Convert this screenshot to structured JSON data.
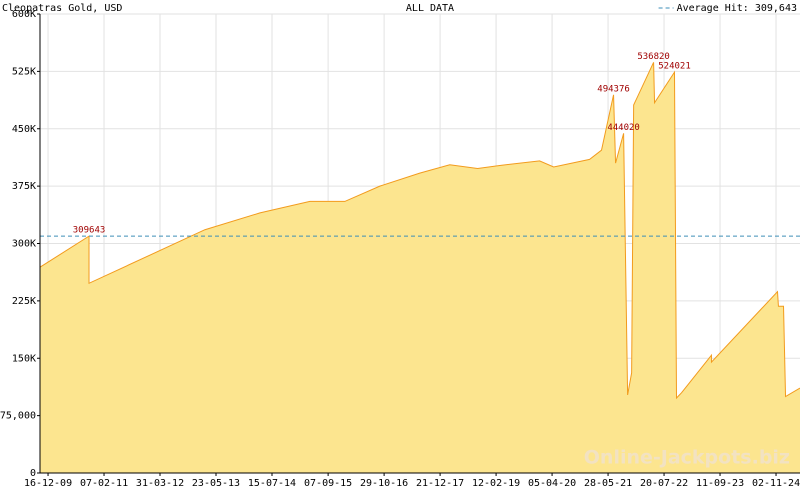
{
  "chart_data": {
    "type": "area",
    "title": "Cleopatras Gold, USD",
    "subtitle": "ALL DATA",
    "watermark": "Online-Jackpots.biz",
    "color": "#fce58f",
    "line_color": "#f29b1d",
    "average": {
      "value": 309643,
      "label": "Average Hit: 309,643",
      "color": "#3d8fb8"
    },
    "grid": true,
    "xlim": [
      "2009-10-17",
      "2025-04-30"
    ],
    "xticks": [
      {
        "value": "2009-12-16",
        "label": "16-12-09"
      },
      {
        "value": "2011-02-07",
        "label": "07-02-11"
      },
      {
        "value": "2012-03-31",
        "label": "31-03-12"
      },
      {
        "value": "2013-05-23",
        "label": "23-05-13"
      },
      {
        "value": "2014-07-15",
        "label": "15-07-14"
      },
      {
        "value": "2015-09-07",
        "label": "07-09-15"
      },
      {
        "value": "2016-10-29",
        "label": "29-10-16"
      },
      {
        "value": "2017-12-21",
        "label": "21-12-17"
      },
      {
        "value": "2019-02-12",
        "label": "12-02-19"
      },
      {
        "value": "2020-04-05",
        "label": "05-04-20"
      },
      {
        "value": "2021-05-28",
        "label": "28-05-21"
      },
      {
        "value": "2022-07-20",
        "label": "20-07-22"
      },
      {
        "value": "2023-09-11",
        "label": "11-09-23"
      },
      {
        "value": "2024-11-02",
        "label": "02-11-24"
      }
    ],
    "ylim": [
      0,
      600000
    ],
    "yticks": [
      0,
      {
        "value": 75000,
        "label": "75,000"
      },
      {
        "value": 150000,
        "label": "150K"
      },
      {
        "value": 225000,
        "label": "225K"
      },
      {
        "value": 300000,
        "label": "300K"
      },
      {
        "value": 375000,
        "label": "375K"
      },
      {
        "value": 450000,
        "label": "450K"
      },
      {
        "value": 525000,
        "label": "525K"
      },
      {
        "value": 600000,
        "label": "600K"
      }
    ],
    "x": [
      "2009-10-17",
      "2010-10-18",
      "2010-10-18",
      "2013-03-01",
      "2014-04-16",
      "2015-04-24",
      "2016-01-10",
      "2016-09-27",
      "2017-07-22",
      "2018-03-03",
      "2018-09-27",
      "2019-03-11",
      "2020-01-03",
      "2020-04-17",
      "2021-01-10",
      "2021-04-09",
      "2021-07-08",
      "2021-07-23",
      "2021-09-21",
      "2021-10-21",
      "2021-11-20",
      "2021-12-05",
      "2022-05-03",
      "2022-05-10",
      "2022-10-06",
      "2022-10-21",
      "2022-11-28",
      "2023-07-09",
      "2023-07-09",
      "2024-11-13",
      "2024-11-20",
      "2024-12-28",
      "2025-01-12",
      "2025-04-30"
    ],
    "values": [
      269000,
      309643,
      248000,
      318000,
      340000,
      355000,
      355000,
      375000,
      392000,
      403000,
      398000,
      402000,
      408000,
      400000,
      410000,
      422000,
      494376,
      405000,
      444020,
      102000,
      131000,
      481000,
      536820,
      484000,
      524021,
      98000,
      105000,
      154000,
      145000,
      237000,
      218000,
      218000,
      100000,
      111000
    ],
    "value_labels": [
      null,
      "309643",
      null,
      null,
      null,
      null,
      null,
      null,
      null,
      null,
      null,
      null,
      null,
      null,
      null,
      null,
      "494376",
      null,
      "444020",
      null,
      null,
      null,
      "536820",
      null,
      "524021",
      null,
      null,
      null,
      null,
      null,
      null,
      null,
      null,
      null
    ]
  }
}
